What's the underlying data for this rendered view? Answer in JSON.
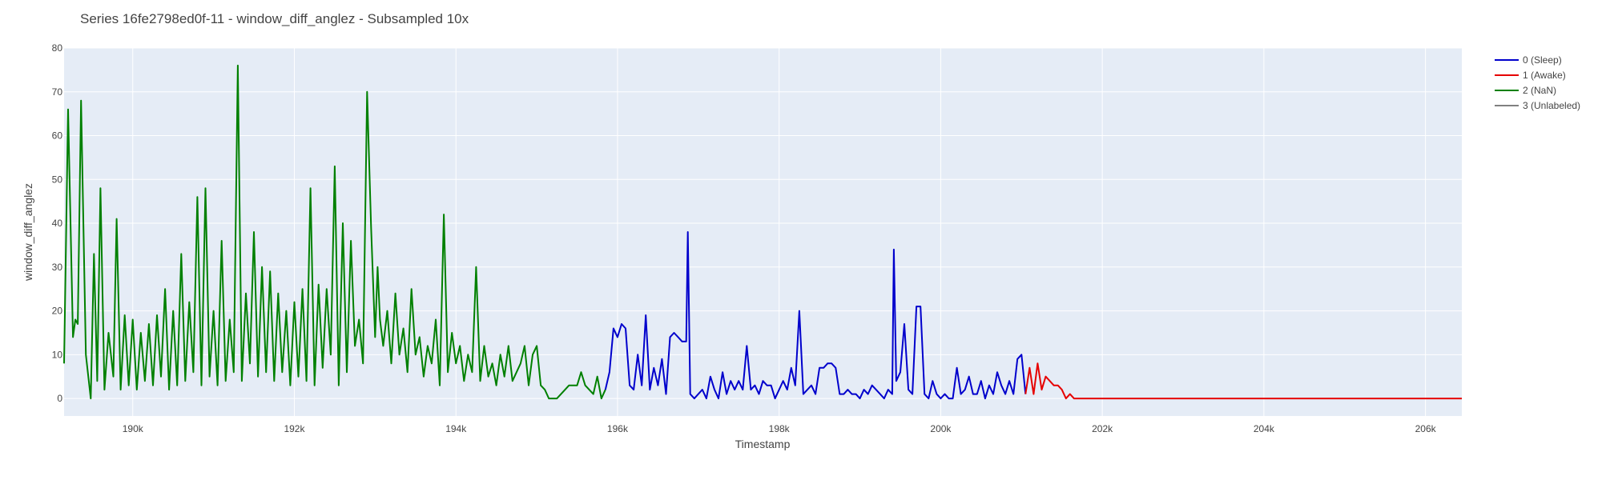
{
  "chart_data": {
    "type": "line",
    "title": "Series 16fe2798ed0f-11 - window_diff_anglez - Subsampled 10x",
    "xlabel": "Timestamp",
    "ylabel": "window_diff_anglez",
    "xlim": [
      189150,
      206450
    ],
    "ylim": [
      -4,
      80
    ],
    "x_ticks": [
      190000,
      192000,
      194000,
      196000,
      198000,
      200000,
      202000,
      204000,
      206000
    ],
    "x_tick_labels": [
      "190k",
      "192k",
      "194k",
      "196k",
      "198k",
      "200k",
      "202k",
      "204k",
      "206k"
    ],
    "y_ticks": [
      0,
      10,
      20,
      30,
      40,
      50,
      60,
      70,
      80
    ],
    "y_tick_labels": [
      "0",
      "10",
      "20",
      "30",
      "40",
      "50",
      "60",
      "70",
      "80"
    ],
    "grid": true,
    "legend_position": "top-right",
    "legend": [
      {
        "label": "0 (Sleep)",
        "color": "#0000cc"
      },
      {
        "label": "1 (Awake)",
        "color": "#e60000"
      },
      {
        "label": "2 (NaN)",
        "color": "#008000"
      },
      {
        "label": "3 (Unlabeled)",
        "color": "#808080"
      }
    ],
    "series": [
      {
        "name": "2 (NaN)",
        "color": "#008000",
        "x": [
          189150,
          189200,
          189260,
          189290,
          189320,
          189360,
          189420,
          189480,
          189520,
          189560,
          189600,
          189650,
          189700,
          189760,
          189800,
          189850,
          189900,
          189950,
          190000,
          190050,
          190100,
          190150,
          190200,
          190250,
          190300,
          190350,
          190400,
          190450,
          190500,
          190550,
          190600,
          190650,
          190700,
          190750,
          190800,
          190850,
          190900,
          190950,
          191000,
          191050,
          191100,
          191150,
          191200,
          191250,
          191300,
          191350,
          191400,
          191450,
          191500,
          191550,
          191600,
          191650,
          191700,
          191750,
          191800,
          191850,
          191900,
          191950,
          192000,
          192050,
          192100,
          192150,
          192200,
          192250,
          192300,
          192350,
          192400,
          192450,
          192500,
          192550,
          192600,
          192650,
          192700,
          192750,
          192800,
          192850,
          192900,
          192950,
          193000,
          193030,
          193060,
          193100,
          193150,
          193200,
          193250,
          193300,
          193350,
          193400,
          193450,
          193500,
          193550,
          193600,
          193650,
          193700,
          193750,
          193800,
          193850,
          193900,
          193950,
          194000,
          194050,
          194100,
          194150,
          194200,
          194250,
          194300,
          194350,
          194400,
          194450,
          194500,
          194550,
          194600,
          194650,
          194700,
          194750,
          194800,
          194850,
          194900,
          194950,
          195000,
          195050,
          195100,
          195150,
          195250,
          195400,
          195500,
          195550,
          195600,
          195650,
          195700,
          195750,
          195800,
          195850
        ],
        "y": [
          8,
          66,
          14,
          18,
          17,
          68,
          10,
          0,
          33,
          4,
          48,
          2,
          15,
          5,
          41,
          2,
          19,
          3,
          18,
          2,
          15,
          4,
          17,
          3,
          19,
          5,
          25,
          2,
          20,
          3,
          33,
          4,
          22,
          6,
          46,
          3,
          48,
          5,
          20,
          3,
          36,
          4,
          18,
          6,
          76,
          4,
          24,
          8,
          38,
          5,
          30,
          6,
          29,
          4,
          24,
          6,
          20,
          3,
          22,
          5,
          25,
          4,
          48,
          3,
          26,
          7,
          25,
          10,
          53,
          3,
          40,
          6,
          36,
          12,
          18,
          8,
          70,
          39,
          14,
          30,
          18,
          12,
          20,
          8,
          24,
          10,
          16,
          6,
          25,
          10,
          14,
          5,
          12,
          8,
          18,
          3,
          42,
          6,
          15,
          8,
          12,
          4,
          10,
          6,
          30,
          4,
          12,
          5,
          8,
          3,
          10,
          5,
          12,
          4,
          6,
          8,
          12,
          3,
          10,
          12,
          3,
          2,
          0,
          0,
          3,
          3,
          6,
          3,
          2,
          1,
          5,
          0,
          2
        ]
      },
      {
        "name": "0 (Sleep)",
        "color": "#0000cc",
        "x": [
          195850,
          195900,
          195950,
          196000,
          196050,
          196100,
          196150,
          196200,
          196250,
          196300,
          196350,
          196400,
          196450,
          196500,
          196550,
          196600,
          196650,
          196700,
          196750,
          196800,
          196850,
          196870,
          196900,
          196950,
          197000,
          197050,
          197100,
          197150,
          197200,
          197250,
          197300,
          197350,
          197400,
          197450,
          197500,
          197550,
          197600,
          197650,
          197700,
          197750,
          197800,
          197850,
          197900,
          197950,
          198000,
          198050,
          198100,
          198150,
          198200,
          198250,
          198300,
          198350,
          198400,
          198450,
          198500,
          198550,
          198600,
          198650,
          198700,
          198750,
          198800,
          198850,
          198900,
          198950,
          199000,
          199050,
          199100,
          199150,
          199200,
          199250,
          199300,
          199350,
          199400,
          199420,
          199450,
          199500,
          199550,
          199600,
          199650,
          199700,
          199750,
          199800,
          199850,
          199900,
          199950,
          200000,
          200050,
          200100,
          200150,
          200200,
          200250,
          200300,
          200350,
          200400,
          200450,
          200500,
          200550,
          200600,
          200650,
          200700,
          200750,
          200800,
          200850,
          200900,
          200950,
          201000,
          201050
        ],
        "y": [
          2,
          6,
          16,
          14,
          17,
          16,
          3,
          2,
          10,
          3,
          19,
          2,
          7,
          3,
          9,
          1,
          14,
          15,
          14,
          13,
          13,
          38,
          1,
          0,
          1,
          2,
          0,
          5,
          2,
          0,
          6,
          1,
          4,
          2,
          4,
          2,
          12,
          2,
          3,
          1,
          4,
          3,
          3,
          0,
          2,
          4,
          2,
          7,
          3,
          20,
          1,
          2,
          3,
          1,
          7,
          7,
          8,
          8,
          7,
          1,
          1,
          2,
          1,
          1,
          0,
          2,
          1,
          3,
          2,
          1,
          0,
          2,
          1,
          34,
          4,
          6,
          17,
          2,
          1,
          21,
          21,
          1,
          0,
          4,
          1,
          0,
          1,
          0,
          0,
          7,
          1,
          2,
          5,
          1,
          1,
          4,
          0,
          3,
          1,
          6,
          3,
          1,
          4,
          1,
          9,
          10,
          1
        ]
      },
      {
        "name": "1 (Awake)",
        "color": "#e60000",
        "x": [
          201050,
          201100,
          201150,
          201200,
          201250,
          201300,
          201350,
          201400,
          201450,
          201500,
          201550,
          201600,
          201650,
          201700,
          202000,
          204000,
          206450
        ],
        "y": [
          1,
          7,
          1,
          8,
          2,
          5,
          4,
          3,
          3,
          2,
          0,
          1,
          0,
          0,
          0,
          0,
          0
        ]
      },
      {
        "name": "3 (Unlabeled)",
        "color": "#808080",
        "x": [],
        "y": []
      }
    ]
  }
}
